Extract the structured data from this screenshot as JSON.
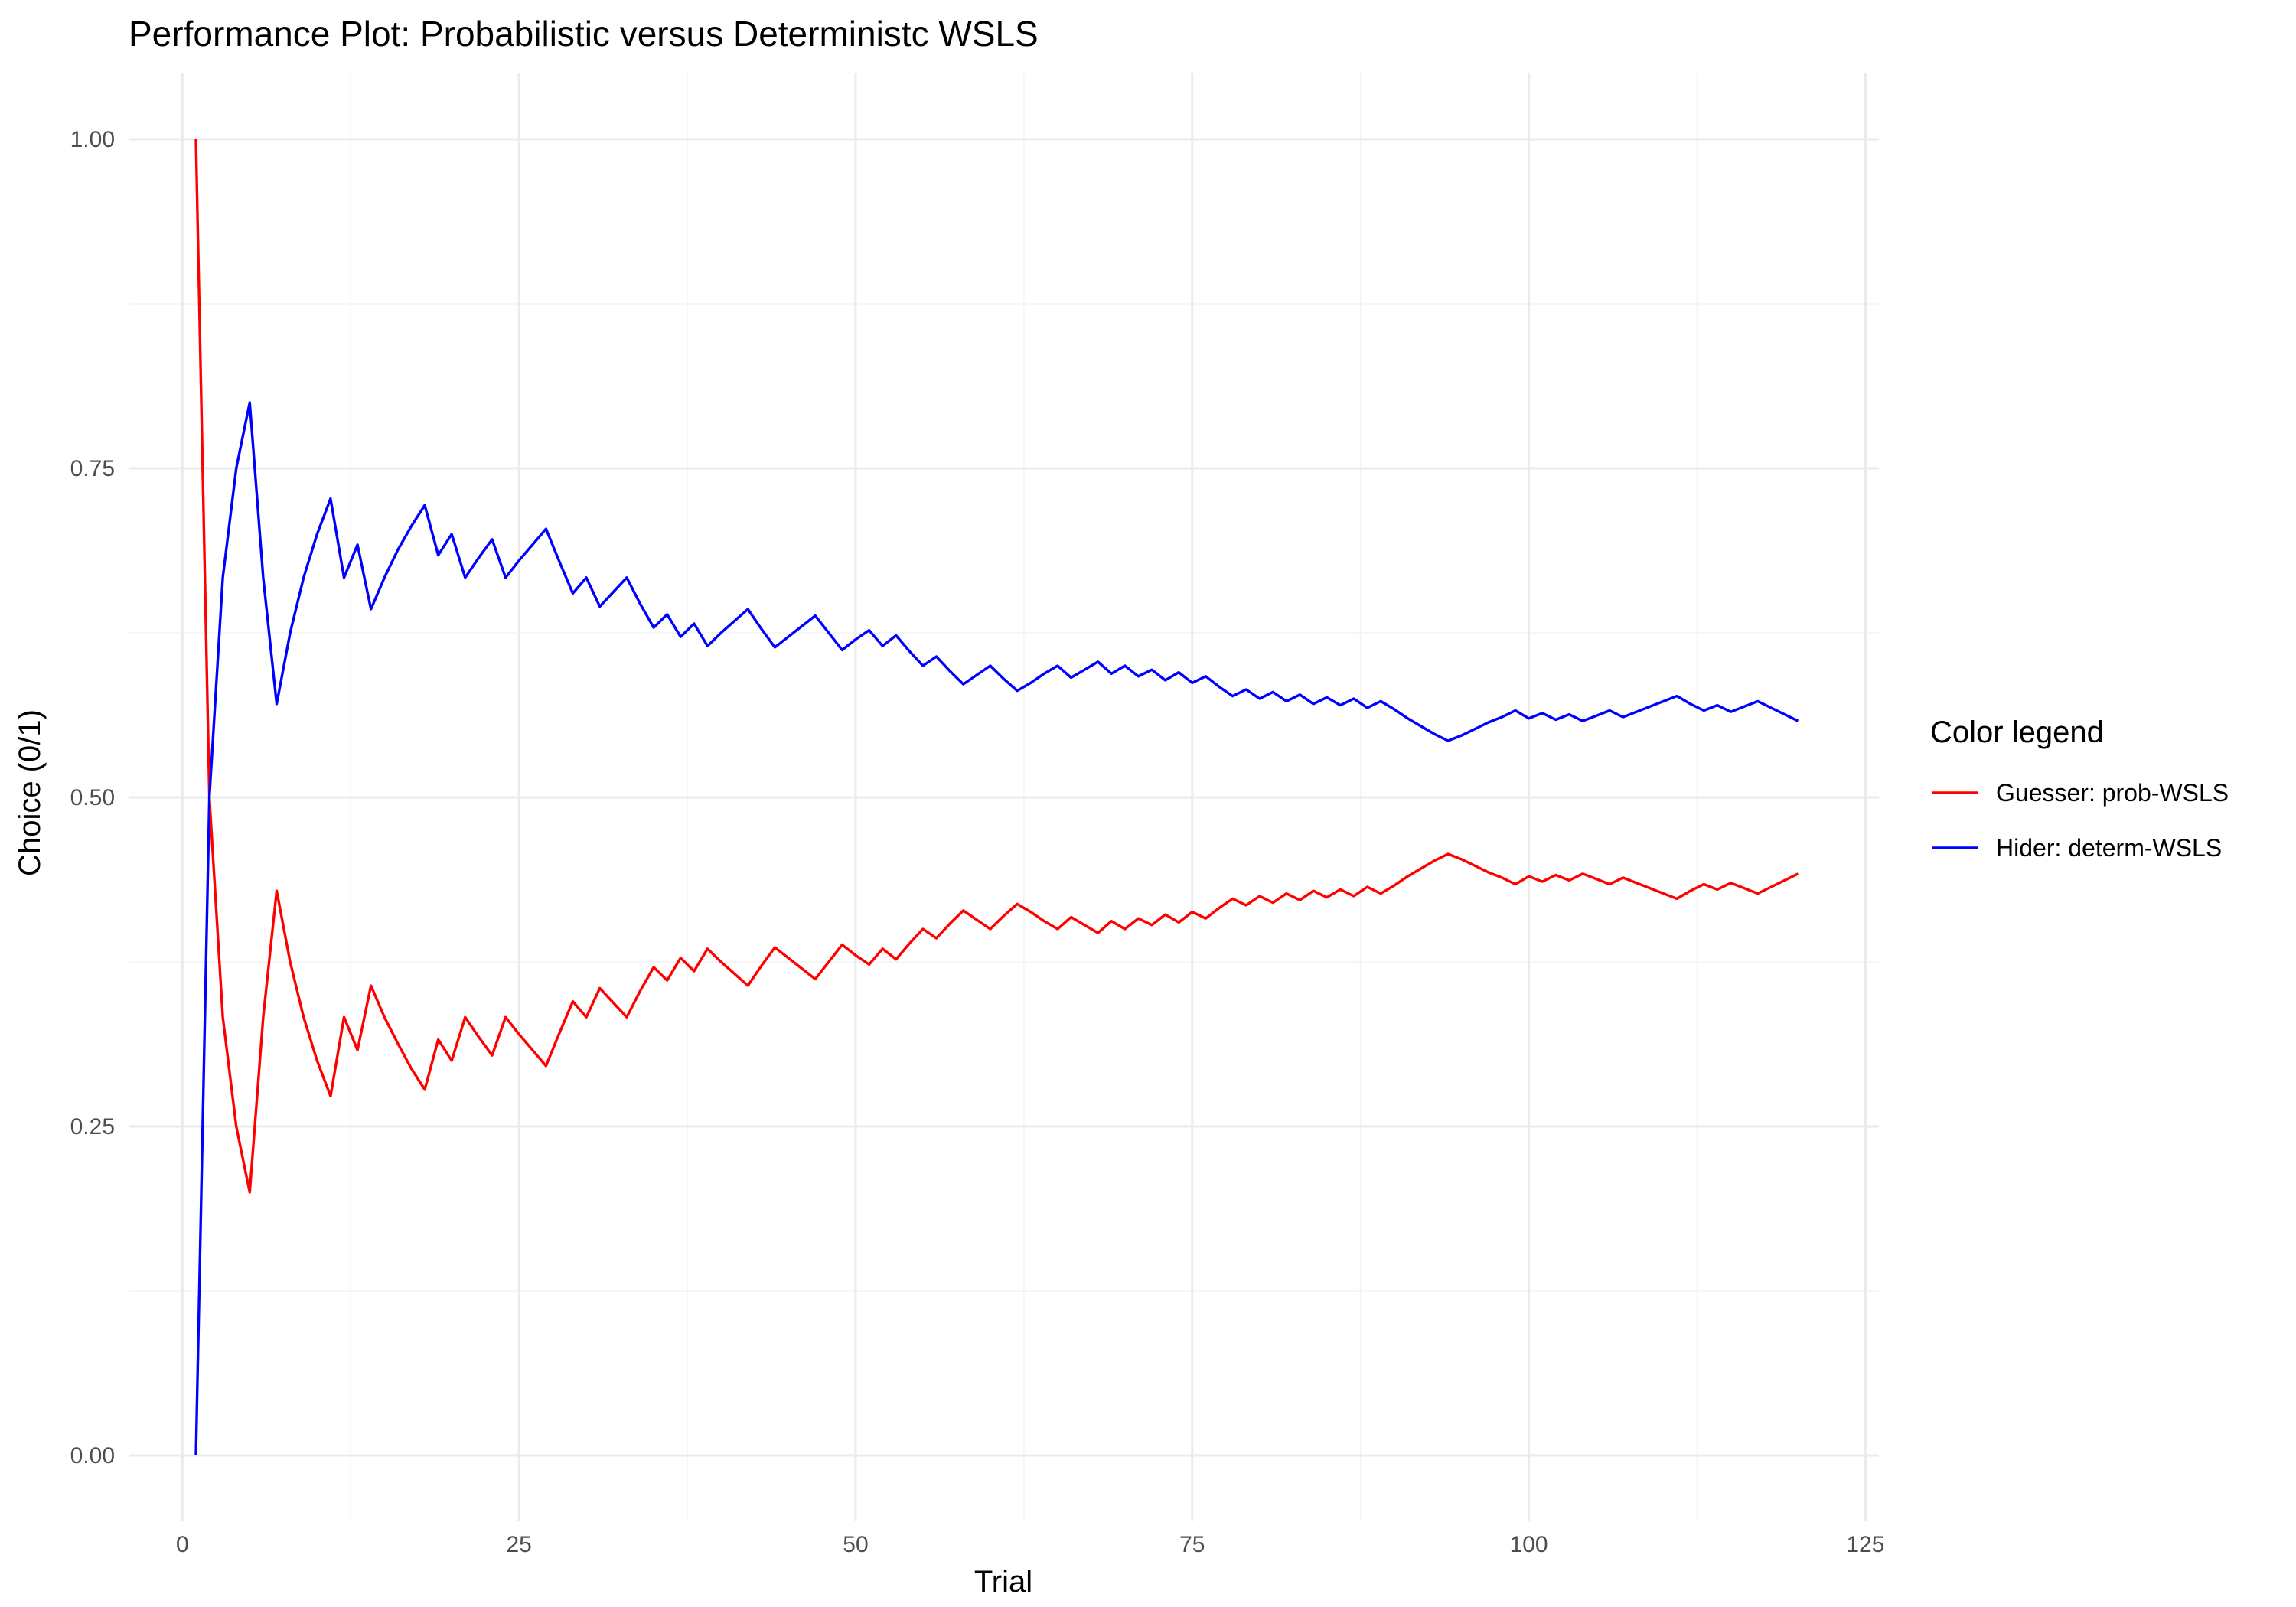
{
  "chart_data": {
    "type": "line",
    "title": "Performance Plot: Probabilistic versus Deterministc WSLS",
    "xlabel": "Trial",
    "ylabel": "Choice (0/1)",
    "xlim": [
      -4,
      126
    ],
    "ylim": [
      -0.05,
      1.05
    ],
    "x_ticks": [
      0,
      25,
      50,
      75,
      100,
      125
    ],
    "x_tick_labels": [
      "0",
      "25",
      "50",
      "75",
      "100",
      "125"
    ],
    "y_ticks": [
      0,
      0.25,
      0.5,
      0.75,
      1
    ],
    "y_tick_labels": [
      "0.00",
      "0.25",
      "0.50",
      "0.75",
      "1.00"
    ],
    "grid": true,
    "legend": {
      "title": "Color legend",
      "position": "right"
    },
    "series": [
      {
        "name": "Guesser: prob-WSLS",
        "color": "#FF0000",
        "x": [
          1,
          2,
          3,
          4,
          5,
          6,
          7,
          8,
          9,
          10,
          11,
          12,
          13,
          14,
          15,
          16,
          17,
          18,
          19,
          20,
          21,
          22,
          23,
          24,
          25,
          26,
          27,
          28,
          29,
          30,
          31,
          32,
          33,
          34,
          35,
          36,
          37,
          38,
          39,
          40,
          41,
          42,
          43,
          44,
          45,
          46,
          47,
          48,
          49,
          50,
          51,
          52,
          53,
          54,
          55,
          56,
          57,
          58,
          59,
          60,
          61,
          62,
          63,
          64,
          65,
          66,
          67,
          68,
          69,
          70,
          71,
          72,
          73,
          74,
          75,
          76,
          77,
          78,
          79,
          80,
          81,
          82,
          83,
          84,
          85,
          86,
          87,
          88,
          89,
          90,
          91,
          92,
          93,
          94,
          95,
          96,
          97,
          98,
          99,
          100,
          101,
          102,
          103,
          104,
          105,
          106,
          107,
          108,
          109,
          110,
          111,
          112,
          113,
          114,
          115,
          116,
          117,
          118,
          119,
          120
        ],
        "y": [
          1.0,
          0.5,
          0.333,
          0.25,
          0.2,
          0.333,
          0.429,
          0.375,
          0.333,
          0.3,
          0.273,
          0.333,
          0.308,
          0.357,
          0.333,
          0.313,
          0.294,
          0.278,
          0.316,
          0.3,
          0.333,
          0.318,
          0.304,
          0.333,
          0.32,
          0.308,
          0.296,
          0.321,
          0.345,
          0.333,
          0.355,
          0.344,
          0.333,
          0.353,
          0.371,
          0.361,
          0.378,
          0.368,
          0.385,
          0.375,
          0.366,
          0.357,
          0.372,
          0.386,
          0.378,
          0.37,
          0.362,
          0.375,
          0.388,
          0.38,
          0.373,
          0.385,
          0.377,
          0.389,
          0.4,
          0.393,
          0.404,
          0.414,
          0.407,
          0.4,
          0.41,
          0.419,
          0.413,
          0.406,
          0.4,
          0.409,
          0.403,
          0.397,
          0.406,
          0.4,
          0.408,
          0.403,
          0.411,
          0.405,
          0.413,
          0.408,
          0.416,
          0.423,
          0.418,
          0.425,
          0.42,
          0.427,
          0.422,
          0.429,
          0.424,
          0.43,
          0.425,
          0.432,
          0.427,
          0.433,
          0.44,
          0.446,
          0.452,
          0.457,
          0.453,
          0.448,
          0.443,
          0.439,
          0.434,
          0.44,
          0.436,
          0.441,
          0.437,
          0.442,
          0.438,
          0.434,
          0.439,
          0.435,
          0.431,
          0.427,
          0.423,
          0.429,
          0.434,
          0.43,
          0.435,
          0.431,
          0.427,
          0.432,
          0.437,
          0.442
        ]
      },
      {
        "name": "Hider: determ-WSLS",
        "color": "#0000FF",
        "x": [
          1,
          2,
          3,
          4,
          5,
          6,
          7,
          8,
          9,
          10,
          11,
          12,
          13,
          14,
          15,
          16,
          17,
          18,
          19,
          20,
          21,
          22,
          23,
          24,
          25,
          26,
          27,
          28,
          29,
          30,
          31,
          32,
          33,
          34,
          35,
          36,
          37,
          38,
          39,
          40,
          41,
          42,
          43,
          44,
          45,
          46,
          47,
          48,
          49,
          50,
          51,
          52,
          53,
          54,
          55,
          56,
          57,
          58,
          59,
          60,
          61,
          62,
          63,
          64,
          65,
          66,
          67,
          68,
          69,
          70,
          71,
          72,
          73,
          74,
          75,
          76,
          77,
          78,
          79,
          80,
          81,
          82,
          83,
          84,
          85,
          86,
          87,
          88,
          89,
          90,
          91,
          92,
          93,
          94,
          95,
          96,
          97,
          98,
          99,
          100,
          101,
          102,
          103,
          104,
          105,
          106,
          107,
          108,
          109,
          110,
          111,
          112,
          113,
          114,
          115,
          116,
          117,
          118,
          119,
          120
        ],
        "y": [
          0.0,
          0.5,
          0.667,
          0.75,
          0.8,
          0.667,
          0.571,
          0.625,
          0.667,
          0.7,
          0.727,
          0.667,
          0.692,
          0.643,
          0.667,
          0.688,
          0.706,
          0.722,
          0.684,
          0.7,
          0.667,
          0.682,
          0.696,
          0.667,
          0.68,
          0.692,
          0.704,
          0.679,
          0.655,
          0.667,
          0.645,
          0.656,
          0.667,
          0.647,
          0.629,
          0.639,
          0.622,
          0.632,
          0.615,
          0.625,
          0.634,
          0.643,
          0.628,
          0.614,
          0.622,
          0.63,
          0.638,
          0.625,
          0.612,
          0.62,
          0.627,
          0.615,
          0.623,
          0.611,
          0.6,
          0.607,
          0.596,
          0.586,
          0.593,
          0.6,
          0.59,
          0.581,
          0.587,
          0.594,
          0.6,
          0.591,
          0.597,
          0.603,
          0.594,
          0.6,
          0.592,
          0.597,
          0.589,
          0.595,
          0.587,
          0.592,
          0.584,
          0.577,
          0.582,
          0.575,
          0.58,
          0.573,
          0.578,
          0.571,
          0.576,
          0.57,
          0.575,
          0.568,
          0.573,
          0.567,
          0.56,
          0.554,
          0.548,
          0.543,
          0.547,
          0.552,
          0.557,
          0.561,
          0.566,
          0.56,
          0.564,
          0.559,
          0.563,
          0.558,
          0.562,
          0.566,
          0.561,
          0.565,
          0.569,
          0.573,
          0.577,
          0.571,
          0.566,
          0.57,
          0.565,
          0.569,
          0.573,
          0.568,
          0.563,
          0.558
        ]
      }
    ]
  }
}
